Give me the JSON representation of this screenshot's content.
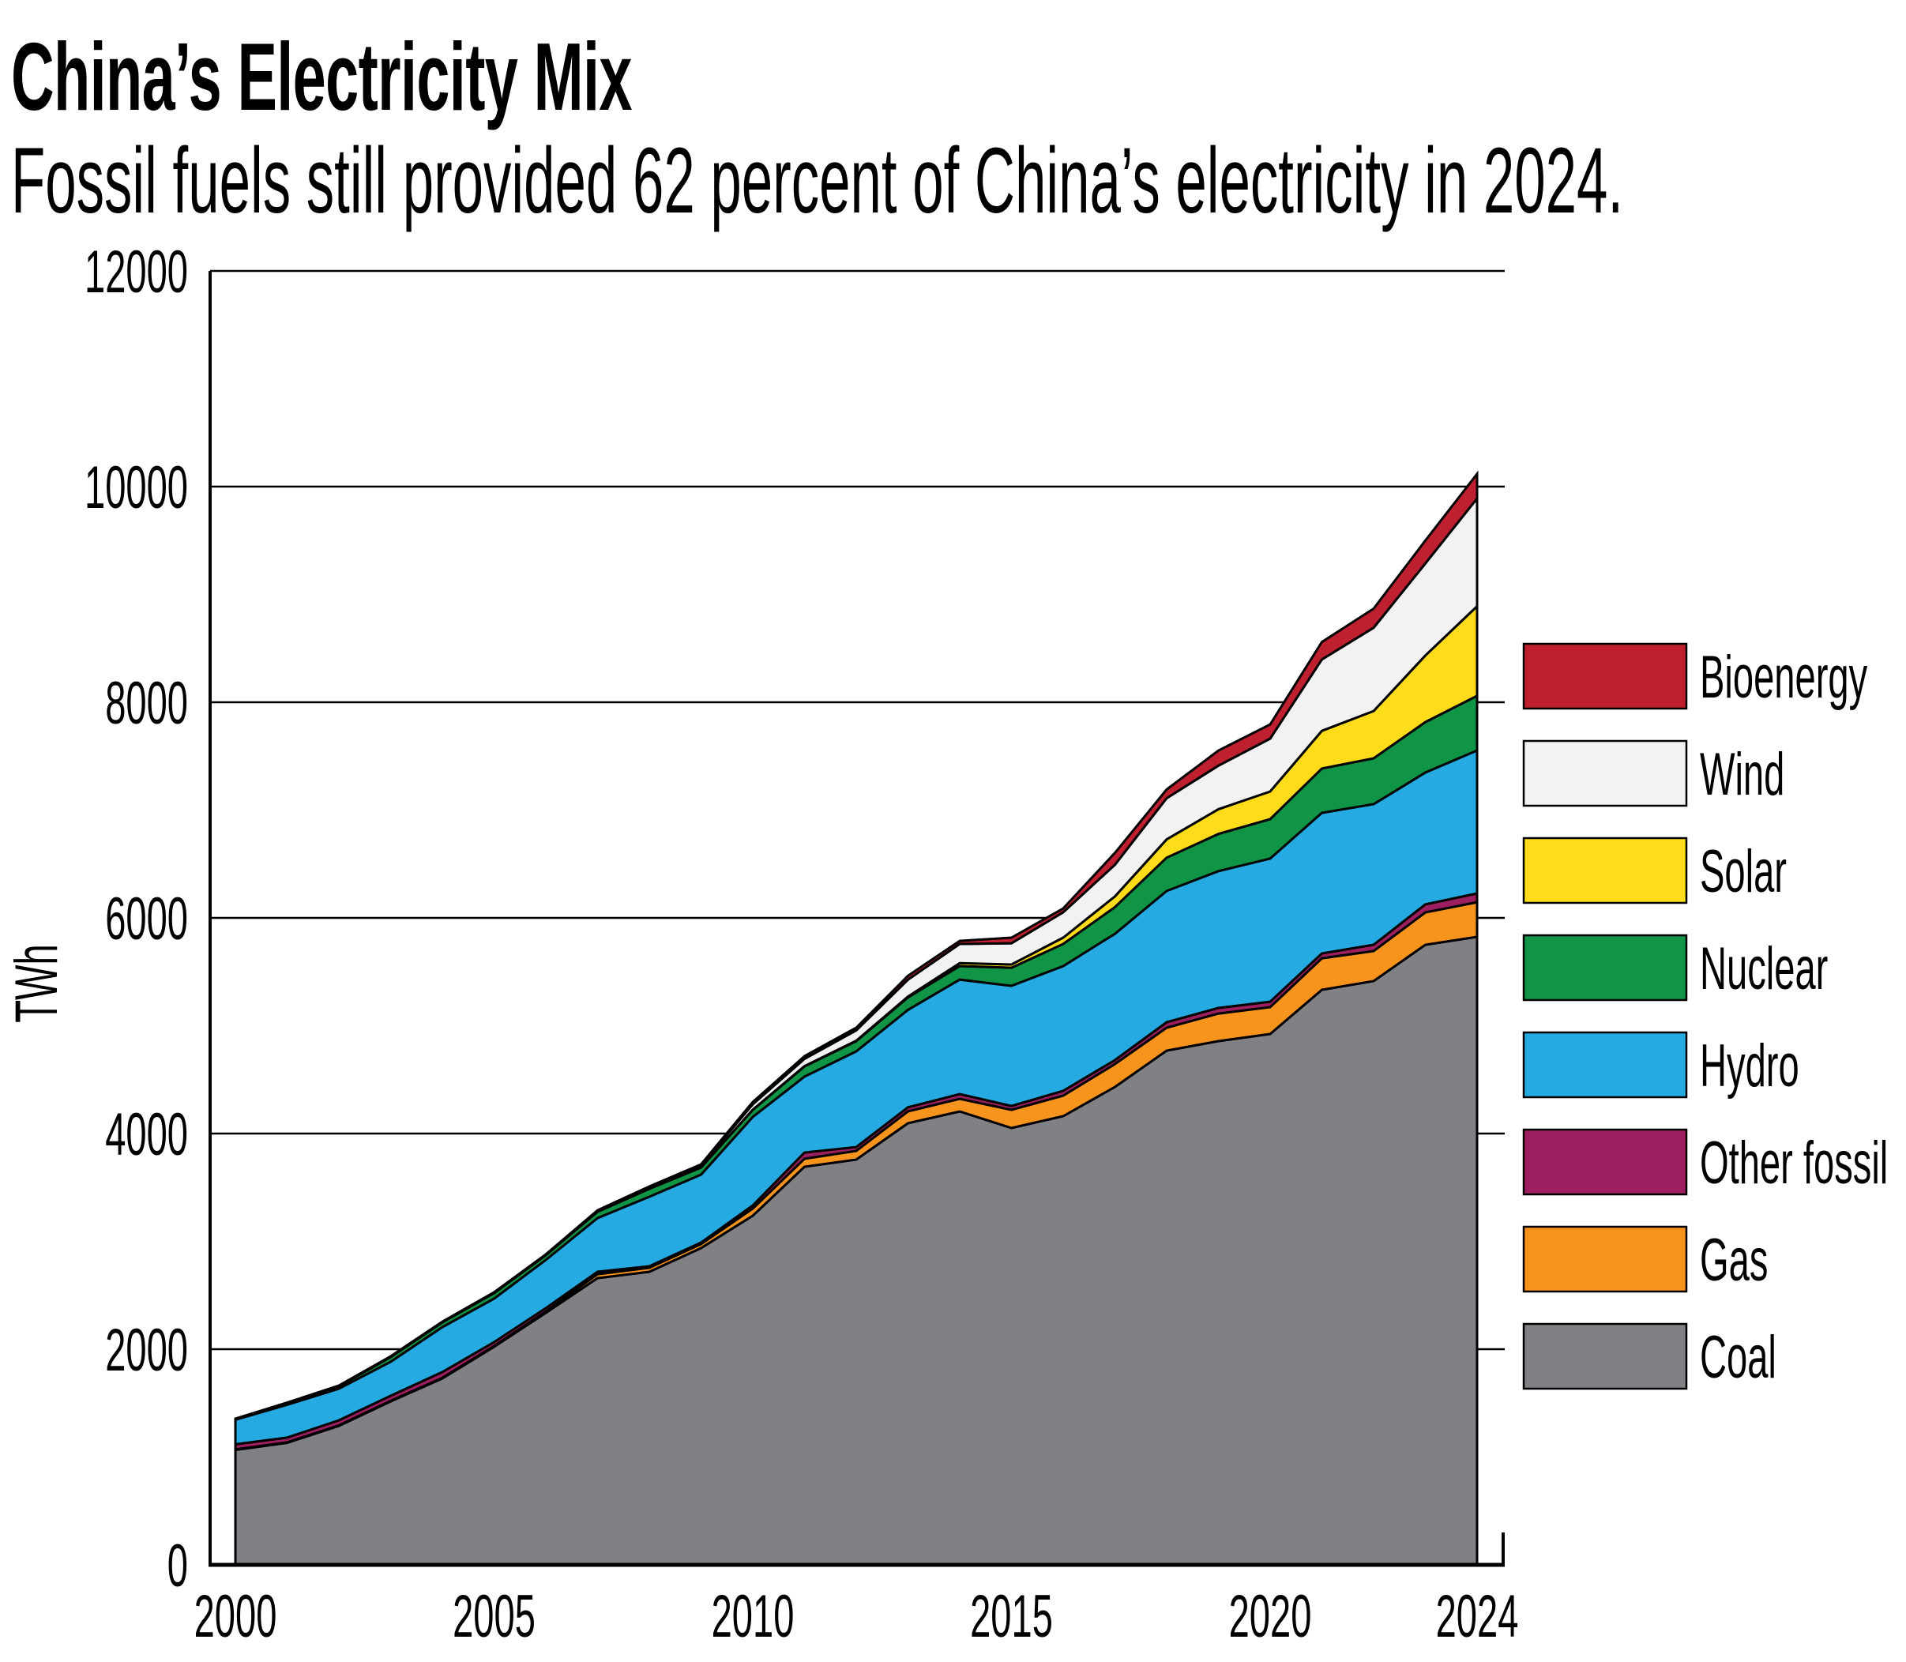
{
  "header": {
    "title": "China’s Electricity Mix",
    "subtitle": "Fossil fuels still provided 62 percent of China’s electricity in 2024."
  },
  "chart_data": {
    "type": "area",
    "stacked": true,
    "title": "China’s Electricity Mix",
    "subtitle": "Fossil fuels still provided 62 percent of China’s electricity in 2024.",
    "xlabel": "",
    "ylabel": "TWh",
    "xlim": [
      2000,
      2024
    ],
    "ylim": [
      0,
      12000
    ],
    "x_ticks": [
      "2000",
      "2005",
      "2010",
      "2015",
      "2020",
      "2024"
    ],
    "x_tick_values": [
      2000,
      2005,
      2010,
      2015,
      2020,
      2024
    ],
    "y_ticks": [
      "0",
      "2000",
      "4000",
      "6000",
      "8000",
      "10000",
      "12000"
    ],
    "y_tick_values": [
      0,
      2000,
      4000,
      6000,
      8000,
      10000,
      12000
    ],
    "grid": "horizontal",
    "legend_position": "right",
    "x": [
      2000,
      2001,
      2002,
      2003,
      2004,
      2005,
      2006,
      2007,
      2008,
      2009,
      2010,
      2011,
      2012,
      2013,
      2014,
      2015,
      2016,
      2017,
      2018,
      2019,
      2020,
      2021,
      2022,
      2023,
      2024
    ],
    "series": [
      {
        "name": "Coal",
        "color": "#808185",
        "values": [
          1066,
          1132,
          1289,
          1516,
          1729,
          2022,
          2337,
          2659,
          2718,
          2938,
          3238,
          3692,
          3758,
          4096,
          4205,
          4051,
          4161,
          4432,
          4769,
          4857,
          4923,
          5333,
          5414,
          5751,
          5824
        ]
      },
      {
        "name": "Gas",
        "color": "#F7941D",
        "values": [
          4,
          4,
          5,
          5,
          6,
          8,
          13,
          37,
          37,
          36,
          66,
          74,
          81,
          110,
          117,
          169,
          191,
          213,
          213,
          256,
          249,
          293,
          278,
          300,
          322
        ]
      },
      {
        "name": "Other fossil",
        "color": "#9E1F5F",
        "values": [
          48,
          44,
          47,
          47,
          53,
          36,
          31,
          22,
          14,
          15,
          29,
          58,
          36,
          37,
          44,
          36,
          44,
          36,
          51,
          52,
          51,
          44,
          59,
          74,
          81
        ]
      },
      {
        "name": "Hydro",
        "color": "#25AAE1",
        "values": [
          228,
          305,
          293,
          315,
          417,
          403,
          447,
          498,
          645,
          630,
          821,
          704,
          887,
          904,
          1062,
          1114,
          1157,
          1172,
          1217,
          1269,
          1327,
          1304,
          1304,
          1223,
          1326
        ]
      },
      {
        "name": "Nuclear",
        "color": "#109446",
        "values": [
          4,
          15,
          22,
          44,
          44,
          51,
          44,
          59,
          73,
          66,
          66,
          95,
          95,
          115,
          125,
          168,
          205,
          247,
          309,
          345,
          366,
          411,
          425,
          468,
          506
        ]
      },
      {
        "name": "Solar",
        "color": "#FEDC19",
        "values": [
          0,
          0,
          0,
          0,
          0,
          0,
          0,
          0,
          0,
          0,
          1,
          3,
          4,
          8,
          27,
          30,
          59,
          99,
          169,
          229,
          256,
          350,
          439,
          618,
          831
        ]
      },
      {
        "name": "Wind",
        "color": "#F2F2F2",
        "values": [
          2,
          2,
          2,
          3,
          3,
          4,
          4,
          5,
          13,
          20,
          50,
          67,
          96,
          157,
          178,
          197,
          235,
          294,
          382,
          404,
          490,
          662,
          772,
          853,
          1000
        ]
      },
      {
        "name": "Bioenergy",
        "color": "#BE202F",
        "values": [
          4,
          3,
          4,
          4,
          4,
          4,
          4,
          9,
          9,
          9,
          22,
          25,
          25,
          36,
          29,
          52,
          36,
          110,
          81,
          140,
          132,
          162,
          177,
          213,
          228
        ]
      }
    ],
    "legend": [
      "Bioenergy",
      "Wind",
      "Solar",
      "Nuclear",
      "Hydro",
      "Other fossil",
      "Gas",
      "Coal"
    ]
  }
}
